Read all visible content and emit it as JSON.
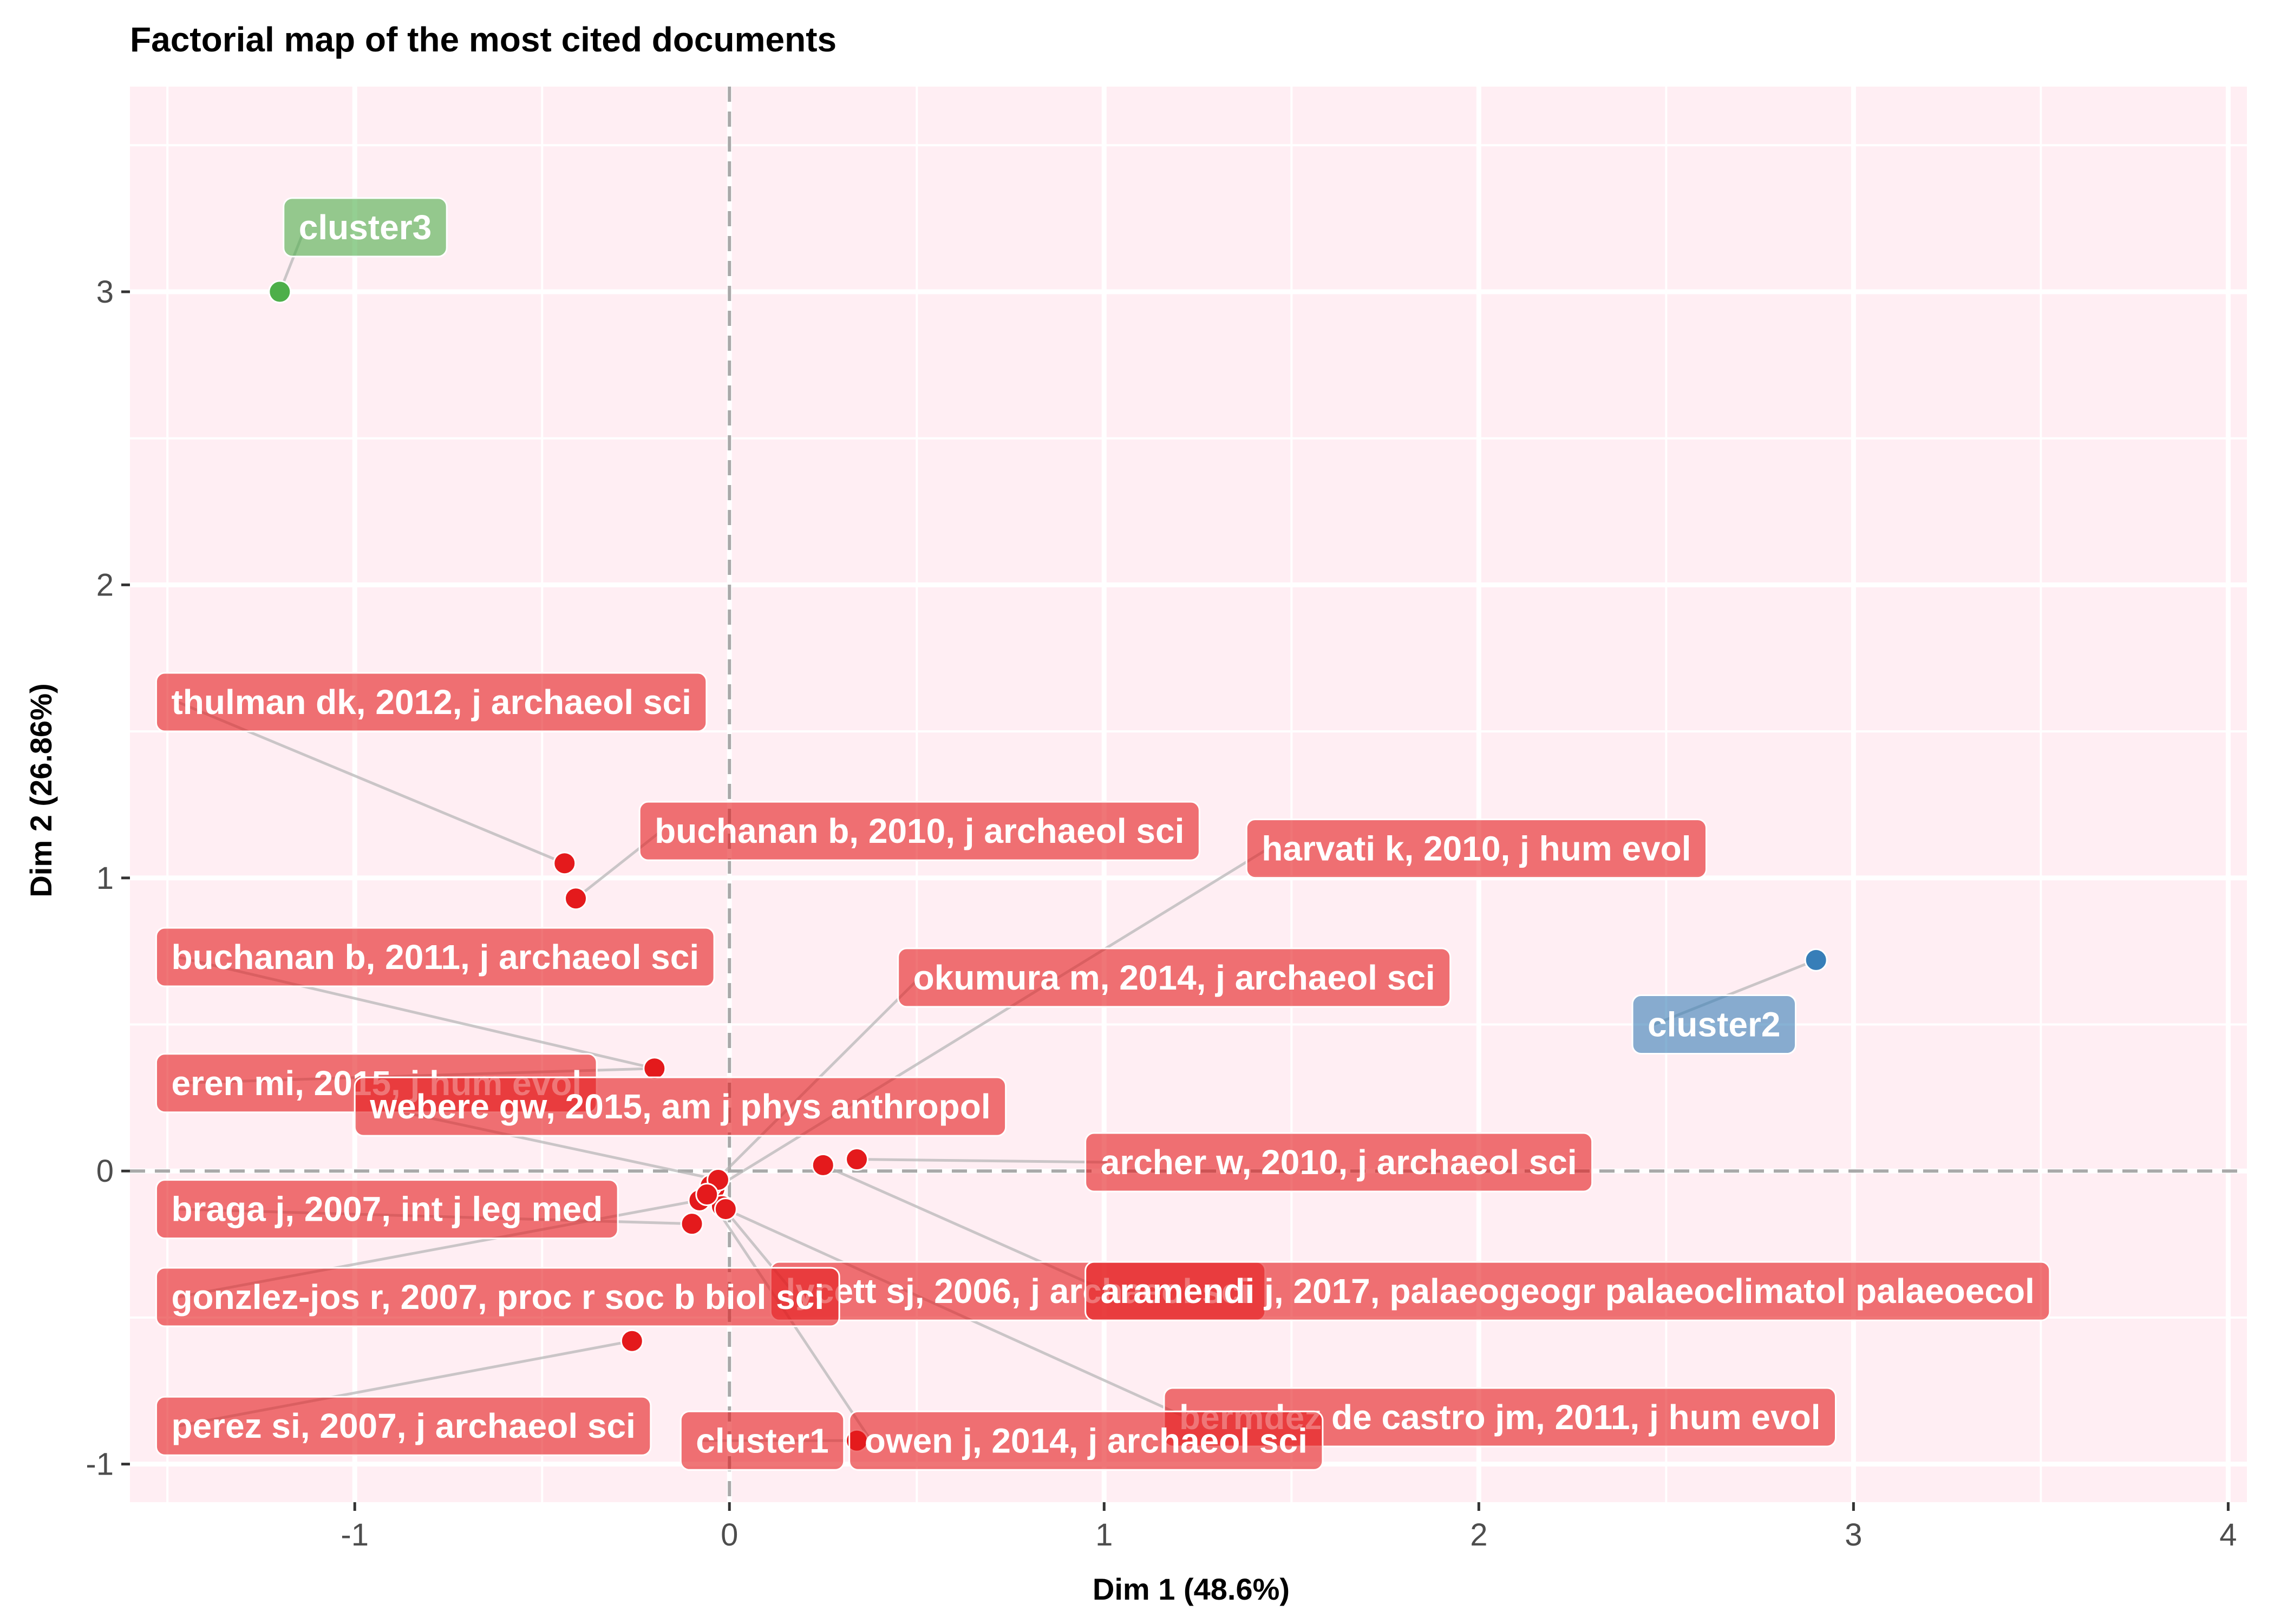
{
  "chart_data": {
    "type": "scatter",
    "title": "Factorial map of the most cited documents",
    "xlabel": "Dim 1 (48.6%)",
    "ylabel": "Dim 2 (26.86%)",
    "xlim": [
      -1.6,
      4.05
    ],
    "ylim": [
      -1.13,
      3.7
    ],
    "xticks": [
      -1,
      0,
      1,
      2,
      3,
      4
    ],
    "yticks": [
      -1,
      0,
      1,
      2,
      3
    ],
    "grid": true,
    "reference_lines": {
      "x": 0,
      "y": 0,
      "style": "dashed"
    },
    "colors": {
      "panel_background": "#FFEEF3",
      "grid": "#FFFFFF",
      "cluster1": "#E41A1C",
      "cluster2": "#377EB8",
      "cluster3": "#4DAF4A"
    },
    "points": [
      {
        "name": "thulman dk, 2012, j archaeol sci",
        "x": -0.44,
        "y": 1.05,
        "cluster": "cluster1"
      },
      {
        "name": "buchanan b, 2010, j archaeol sci",
        "x": -0.41,
        "y": 0.93,
        "cluster": "cluster1"
      },
      {
        "name": "harvati k, 2010, j hum evol",
        "x": -0.04,
        "y": -0.06,
        "cluster": "cluster1"
      },
      {
        "name": "buchanan b, 2011, j archaeol sci",
        "x": -0.2,
        "y": 0.35,
        "cluster": "cluster1"
      },
      {
        "name": "okumura m, 2014, j archaeol sci",
        "x": -0.05,
        "y": -0.05,
        "cluster": "cluster1"
      },
      {
        "name": "eren mi, 2015, j hum evol",
        "x": -0.2,
        "y": 0.35,
        "cluster": "cluster1"
      },
      {
        "name": "webere gw, 2015, am j phys anthropol",
        "x": -0.03,
        "y": -0.03,
        "cluster": "cluster1"
      },
      {
        "name": "archer w, 2010, j archaeol sci",
        "x": 0.34,
        "y": 0.04,
        "cluster": "cluster1"
      },
      {
        "name": "braga j, 2007, int j leg med",
        "x": -0.1,
        "y": -0.18,
        "cluster": "cluster1"
      },
      {
        "name": "lycett sj, 2006, j archaeol sci",
        "x": -0.02,
        "y": -0.12,
        "cluster": "cluster1"
      },
      {
        "name": "aramendi j, 2017, palaeogeogr palaeoclimatol palaeoecol",
        "x": 0.25,
        "y": 0.02,
        "cluster": "cluster1"
      },
      {
        "name": "gonzlez-jos r, 2007, proc r soc b biol sci",
        "x": -0.08,
        "y": -0.1,
        "cluster": "cluster1"
      },
      {
        "name": "bermdez de castro jm, 2011, j hum evol",
        "x": -0.01,
        "y": -0.13,
        "cluster": "cluster1"
      },
      {
        "name": "perez si, 2007, j archaeol sci",
        "x": -0.26,
        "y": -0.58,
        "cluster": "cluster1"
      },
      {
        "name": "owen j, 2014, j archaeol sci",
        "x": -0.06,
        "y": -0.08,
        "cluster": "cluster1"
      },
      {
        "name": "cluster3",
        "x": -1.2,
        "y": 3.0,
        "cluster": "cluster3",
        "centroid": true
      },
      {
        "name": "cluster2",
        "x": 2.9,
        "y": 0.72,
        "cluster": "cluster2",
        "centroid": true
      },
      {
        "name": "cluster1",
        "x": 0.34,
        "y": -0.92,
        "cluster": "cluster1",
        "centroid": true
      }
    ],
    "labels": [
      {
        "text": "thulman dk, 2012, j archaeol sci",
        "x": -1.53,
        "y": 1.6,
        "anchor_x": -0.44,
        "anchor_y": 1.05,
        "cluster": "cluster1"
      },
      {
        "text": "buchanan b, 2010, j archaeol sci",
        "x": -0.24,
        "y": 1.16,
        "anchor_x": -0.41,
        "anchor_y": 0.93,
        "cluster": "cluster1"
      },
      {
        "text": "buchanan b, 2011, j archaeol sci",
        "x": -1.53,
        "y": 0.73,
        "anchor_x": -0.2,
        "anchor_y": 0.35,
        "cluster": "cluster1"
      },
      {
        "text": "eren mi, 2015, j hum evol",
        "x": -1.53,
        "y": 0.3,
        "anchor_x": -0.2,
        "anchor_y": 0.35,
        "cluster": "cluster1"
      },
      {
        "text": "webere gw, 2015, am j phys anthropol",
        "x": -1.0,
        "y": 0.22,
        "anchor_x": -0.03,
        "anchor_y": -0.03,
        "cluster": "cluster1"
      },
      {
        "text": "okumura m, 2014, j archaeol sci",
        "x": 0.45,
        "y": 0.66,
        "anchor_x": -0.05,
        "anchor_y": -0.05,
        "cluster": "cluster1"
      },
      {
        "text": "archer w, 2010, j archaeol sci",
        "x": 0.95,
        "y": 0.03,
        "anchor_x": 0.34,
        "anchor_y": 0.04,
        "cluster": "cluster1"
      },
      {
        "text": "braga j, 2007, int j leg med",
        "x": -1.53,
        "y": -0.13,
        "anchor_x": -0.1,
        "anchor_y": -0.18,
        "cluster": "cluster1"
      },
      {
        "text": "lycett sj, 2006, j archaeol sci",
        "x": 0.11,
        "y": -0.41,
        "anchor_x": -0.02,
        "anchor_y": -0.12,
        "cluster": "cluster1"
      },
      {
        "text": "gonzlez-jos r, 2007, proc r soc b biol sci",
        "x": -1.53,
        "y": -0.43,
        "anchor_x": -0.08,
        "anchor_y": -0.1,
        "cluster": "cluster1"
      },
      {
        "text": "aramendi j, 2017, palaeogeogr palaeoclimatol palaeoecol",
        "x": 0.95,
        "y": -0.41,
        "anchor_x": 0.25,
        "anchor_y": 0.02,
        "cluster": "cluster1"
      },
      {
        "text": "harvati k, 2010, j hum evol",
        "x": 1.38,
        "y": 1.1,
        "anchor_x": -0.04,
        "anchor_y": -0.06,
        "cluster": "cluster1"
      },
      {
        "text": "bermdez de castro jm, 2011, j hum evol",
        "x": 1.16,
        "y": -0.84,
        "anchor_x": -0.01,
        "anchor_y": -0.13,
        "cluster": "cluster1"
      },
      {
        "text": "perez si, 2007, j archaeol sci",
        "x": -1.53,
        "y": -0.87,
        "anchor_x": -0.26,
        "anchor_y": -0.58,
        "cluster": "cluster1"
      },
      {
        "text": "owen j, 2014, j archaeol sci",
        "x": 0.32,
        "y": -0.92,
        "anchor_x": -0.06,
        "anchor_y": -0.08,
        "cluster": "cluster1"
      },
      {
        "text": "cluster1",
        "x": -0.13,
        "y": -0.92,
        "anchor_x": 0.34,
        "anchor_y": -0.92,
        "cluster": "cluster1"
      },
      {
        "text": "cluster2",
        "x": 2.41,
        "y": 0.5,
        "anchor_x": 2.9,
        "anchor_y": 0.72,
        "cluster": "cluster2"
      },
      {
        "text": "cluster3",
        "x": -1.19,
        "y": 3.22,
        "anchor_x": -1.2,
        "anchor_y": 3.0,
        "cluster": "cluster3"
      }
    ]
  }
}
